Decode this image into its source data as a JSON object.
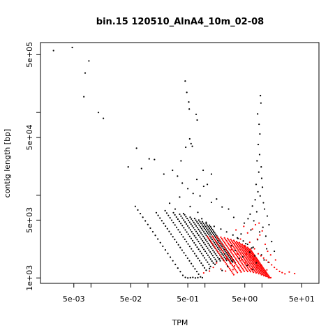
{
  "chart_data": {
    "type": "scatter",
    "title": "bin.15 120510_AlnA4_10m_02-08",
    "xlabel": "TPM",
    "ylabel": "contig length [bp]",
    "x_scale": "log",
    "y_scale": "log",
    "xlim": [
      0.0013,
      100
    ],
    "ylim": [
      860,
      700000
    ],
    "x_ticks": [
      {
        "value": 0.005,
        "label": "5e-03"
      },
      {
        "value": 0.05,
        "label": "5e-02"
      },
      {
        "value": 0.5,
        "label": "5e-01"
      },
      {
        "value": 5,
        "label": "5e+00"
      },
      {
        "value": 50,
        "label": "5e+01"
      }
    ],
    "x_minor_ticks": [
      0.01,
      0.1,
      1,
      10
    ],
    "y_ticks": [
      {
        "value": 1000,
        "label": "1e+03"
      },
      {
        "value": 5000,
        "label": "5e+03"
      },
      {
        "value": 50000,
        "label": "5e+04"
      },
      {
        "value": 500000,
        "label": "5e+05"
      }
    ],
    "y_minor_ticks": [
      10000,
      100000
    ],
    "grid": false,
    "legend": "none",
    "series": [
      {
        "color": "#000000",
        "points": [
          [
            0.0022,
            560000
          ],
          [
            0.0047,
            610000
          ],
          [
            0.0092,
            420000
          ],
          [
            0.0079,
            300000
          ],
          [
            0.0075,
            155000
          ],
          [
            0.0135,
            100000
          ],
          [
            0.0165,
            85000
          ],
          [
            0.045,
            22000
          ],
          [
            0.063,
            37000
          ],
          [
            0.077,
            21000
          ],
          [
            0.105,
            27500
          ],
          [
            0.13,
            27000
          ],
          [
            0.19,
            18000
          ],
          [
            0.38,
            26000
          ],
          [
            0.46,
            38000
          ],
          [
            0.72,
            15500
          ],
          [
            0.93,
            20000
          ],
          [
            1.3,
            18000
          ],
          [
            0.45,
            240000
          ],
          [
            0.48,
            175000
          ],
          [
            0.52,
            134000
          ],
          [
            0.53,
            110000
          ],
          [
            0.7,
            95000
          ],
          [
            0.73,
            81000
          ],
          [
            0.54,
            48000
          ],
          [
            0.57,
            42000
          ],
          [
            0.6,
            39000
          ],
          [
            0.27,
            20000
          ],
          [
            0.33,
            17000
          ],
          [
            0.4,
            14000
          ],
          [
            0.5,
            12000
          ],
          [
            0.62,
            10500
          ],
          [
            0.82,
            9800
          ],
          [
            0.95,
            12800
          ],
          [
            1.1,
            13500
          ],
          [
            1.3,
            8200
          ],
          [
            1.6,
            9000
          ],
          [
            2.0,
            7200
          ],
          [
            2.6,
            6800
          ],
          [
            3.2,
            5400
          ],
          [
            0.24,
            8000
          ],
          [
            0.3,
            6800
          ],
          [
            0.42,
            6000
          ],
          [
            0.36,
            9500
          ],
          [
            0.55,
            7300
          ],
          [
            0.75,
            6200
          ],
          [
            0.88,
            5200
          ],
          [
            1.05,
            4700
          ],
          [
            1.45,
            4200
          ],
          [
            1.9,
            3900
          ],
          [
            2.4,
            3600
          ],
          [
            3.1,
            3300
          ],
          [
            3.8,
            3000
          ],
          [
            4.7,
            2800
          ],
          [
            5.6,
            2550
          ],
          [
            6.6,
            2300
          ],
          [
            9.4,
            160000
          ],
          [
            9.6,
            130000
          ],
          [
            8.4,
            96000
          ],
          [
            8.9,
            72000
          ],
          [
            9.2,
            55000
          ],
          [
            8.6,
            41000
          ],
          [
            9.1,
            31000
          ],
          [
            8.2,
            26000
          ],
          [
            9.7,
            22000
          ],
          [
            8.8,
            19000
          ],
          [
            9.9,
            16000
          ],
          [
            7.9,
            13500
          ],
          [
            10.2,
            12500
          ],
          [
            8.5,
            11000
          ],
          [
            9.3,
            9800
          ],
          [
            7.6,
            8800
          ],
          [
            10.6,
            8100
          ],
          [
            6.8,
            7400
          ],
          [
            11.1,
            6800
          ],
          [
            8.1,
            6300
          ],
          [
            6.2,
            5900
          ],
          [
            12.4,
            5600
          ],
          [
            5.7,
            5200
          ],
          [
            7.2,
            4900
          ],
          [
            4.9,
            4600
          ],
          [
            13.3,
            4400
          ],
          [
            10.4,
            4100
          ],
          [
            6.4,
            3800
          ],
          [
            9.1,
            3600
          ],
          [
            4.3,
            3400
          ],
          [
            11.7,
            3200
          ],
          [
            3.7,
            3050
          ],
          [
            8.4,
            2900
          ],
          [
            14.8,
            2750
          ],
          [
            5.2,
            2600
          ],
          [
            2.9,
            2450
          ],
          [
            7.0,
            2350
          ],
          [
            12.1,
            2250
          ],
          [
            3.4,
            2150
          ],
          [
            6.1,
            2050
          ],
          [
            2.2,
            1950
          ],
          [
            9.8,
            1900
          ],
          [
            4.6,
            1800
          ],
          [
            1.8,
            1700
          ],
          [
            10.9,
            1650
          ],
          [
            3.0,
            1580
          ],
          [
            8.0,
            1520
          ],
          [
            1.5,
            1460
          ],
          [
            5.5,
            1420
          ],
          [
            2.5,
            1380
          ],
          [
            16.5,
            2100
          ],
          [
            7.5,
            1850
          ],
          [
            12.9,
            1550
          ],
          [
            4.0,
            1720
          ],
          [
            1.2,
            1300
          ],
          [
            6.9,
            1270
          ],
          [
            2.0,
            1230
          ]
        ]
      },
      {
        "color": "#ff0000",
        "points": [
          [
            0.95,
            1150
          ],
          [
            1.2,
            1210
          ],
          [
            1.4,
            1340
          ],
          [
            1.9,
            1280
          ],
          [
            2.3,
            1210
          ],
          [
            2.8,
            1500
          ],
          [
            3.3,
            1400
          ],
          [
            3.9,
            1330
          ],
          [
            4.4,
            1650
          ],
          [
            5.1,
            1550
          ],
          [
            5.8,
            1460
          ],
          [
            6.3,
            1800
          ],
          [
            7.1,
            1690
          ],
          [
            7.9,
            1580
          ],
          [
            8.6,
            1960
          ],
          [
            9.6,
            1850
          ],
          [
            10.7,
            1740
          ],
          [
            11.9,
            1640
          ],
          [
            13.3,
            1540
          ],
          [
            14.8,
            1440
          ],
          [
            16.5,
            1340
          ],
          [
            18.2,
            1270
          ],
          [
            20.4,
            1200
          ],
          [
            22.6,
            1160
          ],
          [
            25.3,
            1120
          ],
          [
            30.1,
            1180
          ],
          [
            37.5,
            1130
          ],
          [
            5.0,
            2400
          ],
          [
            6.1,
            2700
          ],
          [
            7.4,
            2250
          ],
          [
            8.3,
            2950
          ],
          [
            9.2,
            3300
          ],
          [
            4.2,
            2950
          ],
          [
            5.6,
            3500
          ],
          [
            6.8,
            3900
          ],
          [
            7.7,
            4400
          ],
          [
            8.9,
            4600
          ],
          [
            10.1,
            3700
          ],
          [
            3.5,
            3800
          ],
          [
            4.8,
            4200
          ],
          [
            2.9,
            2200
          ],
          [
            3.7,
            1950
          ],
          [
            11.4,
            2550
          ],
          [
            12.6,
            2100
          ],
          [
            14.2,
            1900
          ],
          [
            9.7,
            1420
          ],
          [
            6.5,
            1290
          ],
          [
            4.3,
            1180
          ],
          [
            3.1,
            1260
          ],
          [
            17.3,
            1650
          ],
          [
            8.1,
            1340
          ],
          [
            12.2,
            1250
          ],
          [
            5.3,
            1960
          ],
          [
            2.4,
            1700
          ],
          [
            1.6,
            1520
          ]
        ]
      }
    ],
    "bands": [
      {
        "color": "#000000",
        "from_x": 0.06,
        "to_x": 0.75,
        "c": 440
      },
      {
        "color": "#000000",
        "from_x": 0.14,
        "to_x": 0.9,
        "c": 860
      },
      {
        "color": "#000000",
        "from_x": 0.2,
        "to_x": 1.05,
        "c": 1300
      },
      {
        "color": "#000000",
        "from_x": 0.28,
        "to_x": 1.25,
        "c": 1720
      },
      {
        "color": "#000000",
        "from_x": 0.36,
        "to_x": 1.4,
        "c": 2120
      },
      {
        "color": "#000000",
        "from_x": 0.44,
        "to_x": 1.6,
        "c": 2550
      },
      {
        "color": "#000000",
        "from_x": 0.55,
        "to_x": 1.85,
        "c": 2980
      },
      {
        "color": "#000000",
        "from_x": 0.66,
        "to_x": 2.1,
        "c": 3450
      },
      {
        "color": "#000000",
        "from_x": 0.78,
        "to_x": 2.4,
        "c": 3900
      },
      {
        "color": "#000000",
        "from_x": 0.9,
        "to_x": 2.75,
        "c": 4300
      },
      {
        "color": "#000000",
        "from_x": 1.05,
        "to_x": 3.05,
        "c": 4750
      },
      {
        "color": "#000000",
        "from_x": 1.2,
        "to_x": 3.4,
        "c": 5200
      },
      {
        "color": "#ff0000",
        "from_x": 1.1,
        "to_x": 3.2,
        "c": 3500
      },
      {
        "color": "#ff0000",
        "from_x": 1.35,
        "to_x": 3.7,
        "c": 4300
      },
      {
        "color": "#ff0000",
        "from_x": 1.6,
        "to_x": 4.3,
        "c": 5100
      },
      {
        "color": "#ff0000",
        "from_x": 1.9,
        "to_x": 4.9,
        "c": 5900
      },
      {
        "color": "#ff0000",
        "from_x": 2.2,
        "to_x": 5.6,
        "c": 6700
      },
      {
        "color": "#ff0000",
        "from_x": 2.5,
        "to_x": 6.3,
        "c": 7500
      },
      {
        "color": "#ff0000",
        "from_x": 2.85,
        "to_x": 7.1,
        "c": 8300
      },
      {
        "color": "#ff0000",
        "from_x": 3.2,
        "to_x": 7.9,
        "c": 9100
      },
      {
        "color": "#ff0000",
        "from_x": 3.6,
        "to_x": 8.8,
        "c": 9900
      },
      {
        "color": "#ff0000",
        "from_x": 4.0,
        "to_x": 9.8,
        "c": 10700
      },
      {
        "color": "#ff0000",
        "from_x": 4.5,
        "to_x": 10.8,
        "c": 11500
      },
      {
        "color": "#ff0000",
        "from_x": 5.0,
        "to_x": 11.8,
        "c": 12300
      },
      {
        "color": "#ff0000",
        "from_x": 5.6,
        "to_x": 13.0,
        "c": 13100
      },
      {
        "color": "#ff0000",
        "from_x": 6.2,
        "to_x": 14.3,
        "c": 13900
      }
    ]
  }
}
